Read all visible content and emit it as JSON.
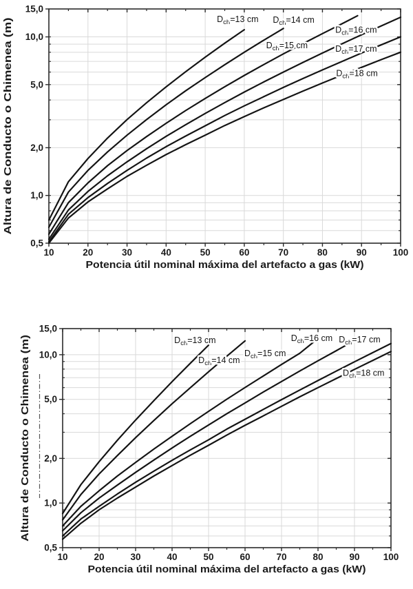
{
  "page": {
    "background": "#ffffff"
  },
  "colors": {
    "curve": "#141414",
    "axis": "#2a2a2a",
    "grid": "#d9d9d9",
    "tick_label": "#1a1a1a",
    "label_halo": "#ffffff",
    "decor_line": "#555555"
  },
  "chart_data": [
    {
      "type": "line",
      "title": "",
      "xlabel": "Potencia útil nominal máxima del artefacto a gas  (kW)",
      "ylabel": "Altura de Conducto o Chimenea (m)",
      "x_axis": {
        "min": 10,
        "max": 100,
        "scale": "linear",
        "ticks": [
          10,
          20,
          30,
          40,
          50,
          60,
          70,
          80,
          90,
          100
        ],
        "tick_labels": [
          "10",
          "20",
          "30",
          "40",
          "50",
          "60",
          "70",
          "80",
          "90",
          "100"
        ],
        "minor_ticks": [
          15,
          25,
          35,
          45,
          55,
          65,
          75,
          85,
          95
        ],
        "gridlines": [
          20,
          30,
          40,
          50,
          60,
          70,
          80,
          90
        ]
      },
      "y_axis": {
        "min": 0.5,
        "max": 15,
        "scale": "log",
        "ticks": [
          0.5,
          1,
          2,
          5,
          10,
          15
        ],
        "tick_labels": [
          "0,5",
          "1,0",
          "2,0",
          "5,0",
          "10,0",
          "15,0"
        ],
        "minor_gridlines": [
          0.6,
          0.7,
          0.8,
          0.9,
          1,
          2,
          3,
          4,
          5,
          6,
          7,
          8,
          9,
          10
        ]
      },
      "grid": true,
      "legend_position": "inline-labels",
      "series": [
        {
          "name": "Dch=13 cm",
          "diameter_cm": 13,
          "label": {
            "base": "D",
            "sub": "ch",
            "rest": "=13 cm"
          },
          "label_anchor": [
            53,
            12.4
          ],
          "points": [
            [
              10,
              0.7
            ],
            [
              15,
              1.22
            ],
            [
              20,
              1.71
            ],
            [
              25,
              2.3
            ],
            [
              30,
              3.01
            ],
            [
              35,
              3.84
            ],
            [
              40,
              4.84
            ],
            [
              45,
              6.03
            ],
            [
              50,
              7.45
            ],
            [
              55,
              9.12
            ],
            [
              60,
              11.1
            ]
          ]
        },
        {
          "name": "Dch=14 cm",
          "diameter_cm": 14,
          "label": {
            "base": "D",
            "sub": "ch",
            "rest": "=14 cm"
          },
          "label_anchor": [
            67.3,
            12.3
          ],
          "points": [
            [
              10,
              0.63
            ],
            [
              15,
              1.05
            ],
            [
              20,
              1.44
            ],
            [
              25,
              1.88
            ],
            [
              30,
              2.4
            ],
            [
              35,
              3.01
            ],
            [
              40,
              3.73
            ],
            [
              45,
              4.57
            ],
            [
              50,
              5.54
            ],
            [
              55,
              6.68
            ],
            [
              60,
              8.0
            ],
            [
              65,
              9.53
            ],
            [
              70,
              11.3
            ]
          ]
        },
        {
          "name": "Dch=15 cm",
          "diameter_cm": 15,
          "label": {
            "base": "D",
            "sub": "ch",
            "rest": "=15 cm"
          },
          "label_anchor": [
            65.6,
            8.5
          ],
          "points": [
            [
              10,
              0.57
            ],
            [
              15,
              0.9
            ],
            [
              20,
              1.2
            ],
            [
              25,
              1.54
            ],
            [
              30,
              1.92
            ],
            [
              35,
              2.35
            ],
            [
              40,
              2.85
            ],
            [
              45,
              3.43
            ],
            [
              50,
              4.09
            ],
            [
              55,
              4.85
            ],
            [
              60,
              5.71
            ],
            [
              65,
              6.69
            ],
            [
              70,
              7.81
            ],
            [
              75,
              9.06
            ],
            [
              80,
              10.49
            ],
            [
              85,
              12.1
            ],
            [
              89,
              13.6
            ]
          ]
        },
        {
          "name": "Dch=16 cm",
          "diameter_cm": 16,
          "label": {
            "base": "D",
            "sub": "ch",
            "rest": "=16 cm"
          },
          "label_anchor": [
            83.3,
            10.6
          ],
          "points": [
            [
              10,
              0.53
            ],
            [
              15,
              0.81
            ],
            [
              20,
              1.06
            ],
            [
              25,
              1.33
            ],
            [
              30,
              1.63
            ],
            [
              35,
              1.97
            ],
            [
              40,
              2.36
            ],
            [
              45,
              2.79
            ],
            [
              50,
              3.29
            ],
            [
              55,
              3.85
            ],
            [
              60,
              4.49
            ],
            [
              65,
              5.2
            ],
            [
              70,
              6.0
            ],
            [
              75,
              6.9
            ],
            [
              80,
              7.91
            ],
            [
              85,
              9.04
            ],
            [
              90,
              10.31
            ],
            [
              95,
              11.72
            ],
            [
              100,
              13.3
            ]
          ]
        },
        {
          "name": "Dch=17 cm",
          "diameter_cm": 17,
          "label": {
            "base": "D",
            "sub": "ch",
            "rest": "=17 cm"
          },
          "label_anchor": [
            83.3,
            8.05
          ],
          "points": [
            [
              10,
              0.51
            ],
            [
              15,
              0.76
            ],
            [
              20,
              0.97
            ],
            [
              25,
              1.19
            ],
            [
              30,
              1.44
            ],
            [
              35,
              1.72
            ],
            [
              40,
              2.03
            ],
            [
              45,
              2.37
            ],
            [
              50,
              2.75
            ],
            [
              55,
              3.19
            ],
            [
              60,
              3.67
            ],
            [
              65,
              4.2
            ],
            [
              70,
              4.8
            ],
            [
              75,
              5.46
            ],
            [
              80,
              6.19
            ],
            [
              85,
              7.0
            ],
            [
              90,
              7.91
            ],
            [
              95,
              8.9
            ],
            [
              100,
              10.0
            ]
          ]
        },
        {
          "name": "Dch=18 cm",
          "diameter_cm": 18,
          "label": {
            "base": "D",
            "sub": "ch",
            "rest": "=18 cm"
          },
          "label_anchor": [
            83.5,
            5.66
          ],
          "points": [
            [
              10,
              0.5
            ],
            [
              15,
              0.72
            ],
            [
              20,
              0.91
            ],
            [
              25,
              1.1
            ],
            [
              30,
              1.32
            ],
            [
              35,
              1.55
            ],
            [
              40,
              1.81
            ],
            [
              45,
              2.09
            ],
            [
              50,
              2.4
            ],
            [
              55,
              2.76
            ],
            [
              60,
              3.14
            ],
            [
              65,
              3.57
            ],
            [
              70,
              4.03
            ],
            [
              75,
              4.55
            ],
            [
              80,
              5.12
            ],
            [
              85,
              5.74
            ],
            [
              90,
              6.42
            ],
            [
              95,
              7.18
            ],
            [
              100,
              8.0
            ]
          ]
        }
      ]
    },
    {
      "type": "line",
      "title": "",
      "xlabel": "Potencia útil nominal máxima del artefacto a gas  (kW)",
      "ylabel": "Altura de Conducto o Chimenea (m)",
      "x_axis": {
        "min": 10,
        "max": 100,
        "scale": "linear",
        "ticks": [
          10,
          20,
          30,
          40,
          50,
          60,
          70,
          80,
          90,
          100
        ],
        "tick_labels": [
          "10",
          "20",
          "30",
          "40",
          "50",
          "60",
          "70",
          "80",
          "90",
          "100"
        ],
        "minor_ticks": [
          15,
          25,
          35,
          45,
          55,
          65,
          75,
          85,
          95
        ],
        "gridlines": [
          20,
          30,
          40,
          50,
          60,
          70,
          80,
          90
        ]
      },
      "y_axis": {
        "min": 0.5,
        "max": 15,
        "scale": "log",
        "ticks": [
          0.5,
          1,
          2,
          5,
          10,
          15
        ],
        "tick_labels": [
          "0,5",
          "1,0",
          "2,0",
          "5,0",
          "10,0",
          "15,0"
        ],
        "minor_gridlines": [
          0.6,
          0.7,
          0.8,
          0.9,
          1,
          2,
          3,
          4,
          5,
          6,
          7,
          8,
          9,
          10
        ]
      },
      "grid": true,
      "legend_position": "inline-labels",
      "decor_dash_dot_line": true,
      "series": [
        {
          "name": "Dch=13 cm",
          "diameter_cm": 13,
          "label": {
            "base": "D",
            "sub": "ch",
            "rest": "=13 cm"
          },
          "label_anchor": [
            40.6,
            12.0
          ],
          "points": [
            [
              10,
              0.85
            ],
            [
              15,
              1.33
            ],
            [
              20,
              1.9
            ],
            [
              25,
              2.65
            ],
            [
              30,
              3.63
            ],
            [
              35,
              4.9
            ],
            [
              40,
              6.58
            ],
            [
              45,
              8.76
            ],
            [
              50,
              11.6
            ]
          ]
        },
        {
          "name": "Dch=14 cm",
          "diameter_cm": 14,
          "label": {
            "base": "D",
            "sub": "ch",
            "rest": "=14 cm"
          },
          "label_anchor": [
            47.2,
            8.8
          ],
          "points": [
            [
              10,
              0.77
            ],
            [
              15,
              1.14
            ],
            [
              20,
              1.57
            ],
            [
              25,
              2.09
            ],
            [
              30,
              2.76
            ],
            [
              35,
              3.6
            ],
            [
              40,
              4.67
            ],
            [
              45,
              5.99
            ],
            [
              50,
              7.67
            ],
            [
              55,
              9.77
            ],
            [
              60,
              12.4
            ]
          ]
        },
        {
          "name": "Dch=15 cm",
          "diameter_cm": 15,
          "label": {
            "base": "D",
            "sub": "ch",
            "rest": "=15 cm"
          },
          "label_anchor": [
            59.8,
            9.8
          ],
          "points": [
            [
              10,
              0.7
            ],
            [
              15,
              0.95
            ],
            [
              20,
              1.21
            ],
            [
              25,
              1.52
            ],
            [
              30,
              1.88
            ],
            [
              35,
              2.31
            ],
            [
              40,
              2.82
            ],
            [
              45,
              3.43
            ],
            [
              50,
              4.15
            ],
            [
              55,
              5.01
            ],
            [
              60,
              6.01
            ],
            [
              65,
              7.19
            ],
            [
              70,
              8.59
            ],
            [
              75,
              10.23
            ],
            [
              79,
              12.3
            ]
          ]
        },
        {
          "name": "Dch=16 cm",
          "diameter_cm": 16,
          "label": {
            "base": "D",
            "sub": "ch",
            "rest": "=16 cm"
          },
          "label_anchor": [
            72.6,
            12.4
          ],
          "points": [
            [
              10,
              0.65
            ],
            [
              15,
              0.86
            ],
            [
              20,
              1.08
            ],
            [
              25,
              1.32
            ],
            [
              30,
              1.61
            ],
            [
              35,
              1.95
            ],
            [
              40,
              2.35
            ],
            [
              45,
              2.82
            ],
            [
              50,
              3.36
            ],
            [
              55,
              4.0
            ],
            [
              60,
              4.73
            ],
            [
              65,
              5.6
            ],
            [
              70,
              6.6
            ],
            [
              75,
              7.76
            ],
            [
              80,
              9.1
            ],
            [
              85,
              10.64
            ],
            [
              88,
              11.7
            ]
          ]
        },
        {
          "name": "Dch=17 cm",
          "diameter_cm": 17,
          "label": {
            "base": "D",
            "sub": "ch",
            "rest": "=17 cm"
          },
          "label_anchor": [
            85.7,
            12.1
          ],
          "points": [
            [
              10,
              0.6
            ],
            [
              15,
              0.78
            ],
            [
              20,
              0.95
            ],
            [
              25,
              1.15
            ],
            [
              30,
              1.38
            ],
            [
              35,
              1.64
            ],
            [
              40,
              1.94
            ],
            [
              45,
              2.28
            ],
            [
              50,
              2.67
            ],
            [
              55,
              3.15
            ],
            [
              60,
              3.67
            ],
            [
              65,
              4.28
            ],
            [
              70,
              4.98
            ],
            [
              75,
              5.78
            ],
            [
              80,
              6.7
            ],
            [
              85,
              7.75
            ],
            [
              90,
              8.96
            ],
            [
              95,
              10.33
            ],
            [
              100,
              11.9
            ]
          ]
        },
        {
          "name": "Dch=18 cm",
          "diameter_cm": 18,
          "label": {
            "base": "D",
            "sub": "ch",
            "rest": "=18 cm"
          },
          "label_anchor": [
            86.8,
            7.2
          ],
          "points": [
            [
              10,
              0.57
            ],
            [
              15,
              0.73
            ],
            [
              20,
              0.9
            ],
            [
              25,
              1.08
            ],
            [
              30,
              1.28
            ],
            [
              35,
              1.52
            ],
            [
              40,
              1.79
            ],
            [
              45,
              2.1
            ],
            [
              50,
              2.45
            ],
            [
              55,
              2.87
            ],
            [
              60,
              3.34
            ],
            [
              65,
              3.87
            ],
            [
              70,
              4.49
            ],
            [
              75,
              5.2
            ],
            [
              80,
              6.0
            ],
            [
              85,
              6.91
            ],
            [
              90,
              7.96
            ],
            [
              95,
              9.15
            ],
            [
              100,
              10.5
            ]
          ]
        }
      ]
    }
  ]
}
